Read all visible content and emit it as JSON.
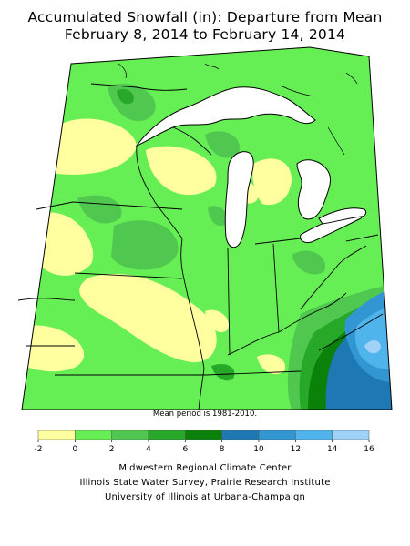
{
  "title": {
    "line1": "Accumulated Snowfall (in): Departure from Mean",
    "line2": "February 8, 2014 to February 14, 2014"
  },
  "map": {
    "note": "Mean period is 1981-2010.",
    "colors": {
      "lake": "#ffffff",
      "land_outside": "#ffffff",
      "border": "#000000"
    }
  },
  "legend": {
    "bins": [
      {
        "from": -2,
        "to": 0,
        "color": "#ffffa0"
      },
      {
        "from": 0,
        "to": 2,
        "color": "#66ee55"
      },
      {
        "from": 2,
        "to": 4,
        "color": "#50c850"
      },
      {
        "from": 4,
        "to": 6,
        "color": "#28a828"
      },
      {
        "from": 6,
        "to": 8,
        "color": "#0a820a"
      },
      {
        "from": 8,
        "to": 10,
        "color": "#1e78b4"
      },
      {
        "from": 10,
        "to": 12,
        "color": "#3296d2"
      },
      {
        "from": 12,
        "to": 14,
        "color": "#50b4ec"
      },
      {
        "from": 14,
        "to": 16,
        "color": "#a0d2f8"
      }
    ],
    "ticks": [
      "-2",
      "0",
      "2",
      "4",
      "6",
      "8",
      "10",
      "12",
      "14",
      "16"
    ]
  },
  "credits": {
    "line1": "Midwestern Regional Climate Center",
    "line2": "Illinois State Water Survey, Prairie Research Institute",
    "line3": "University of Illinois at Urbana-Champaign"
  }
}
